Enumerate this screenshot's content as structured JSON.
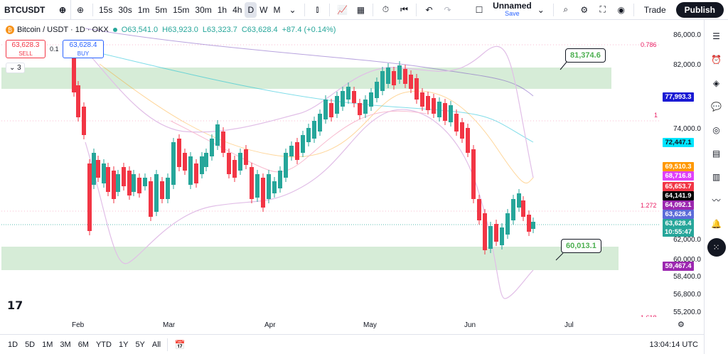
{
  "topbar": {
    "symbol": "BTCUSDT",
    "intervals": [
      "15s",
      "30s",
      "1m",
      "5m",
      "15m",
      "30m",
      "1h",
      "4h",
      "D",
      "W",
      "M"
    ],
    "active_interval": "D",
    "layout_name": "Unnamed",
    "layout_status": "Save",
    "trade_label": "Trade",
    "publish_label": "Publish"
  },
  "legend": {
    "title": "Bitcoin / USDT · 1D · OKX",
    "o": "O63,541.0",
    "h": "H63,923.0",
    "l": "L63,323.7",
    "c": "C63,628.4",
    "change": "+87.4 (+0.14%)",
    "sell_price": "63,628.3",
    "sell_label": "SELL",
    "spread": "0.1",
    "buy_price": "63,628.4",
    "buy_label": "BUY",
    "indicators_count": "3"
  },
  "annotations": {
    "upper_callout": "81,374.6",
    "lower_callout": "60,013.1"
  },
  "fib_labels": [
    "0.786",
    "1",
    "1.272",
    "1.618"
  ],
  "price_axis": [
    "86,000.0",
    "82,000.0",
    "74,000.0",
    "62,000.0",
    "60,000.0",
    "58,400.0",
    "56,800.0",
    "55,200.0"
  ],
  "price_tags": [
    {
      "label": "77,993.3",
      "color": "#1a1ad4",
      "text": "#ffffff"
    },
    {
      "label": "72,447.1",
      "color": "#00e5ff",
      "text": "#131722"
    },
    {
      "label": "69,510.3",
      "color": "#ff9800",
      "text": "#ffffff"
    },
    {
      "label": "68,716.8",
      "color": "#e040fb",
      "text": "#ffffff"
    },
    {
      "label": "65,653.7",
      "color": "#f23645",
      "text": "#ffffff"
    },
    {
      "label": "64,141.9",
      "color": "#000000",
      "text": "#ffffff"
    },
    {
      "label": "64,092.1",
      "color": "#9c27b0",
      "text": "#ffffff"
    },
    {
      "label": "63,628.4",
      "color": "#5b6bd9",
      "text": "#ffffff"
    },
    {
      "label": "63,628.4",
      "color": "#26a69a",
      "text": "#ffffff"
    },
    {
      "label": "10:55:47",
      "color": "#26a69a",
      "text": "#ffffff"
    },
    {
      "label": "59,467.4",
      "color": "#9c27b0",
      "text": "#ffffff"
    }
  ],
  "time_axis": [
    "Feb",
    "Mar",
    "Apr",
    "May",
    "Jun",
    "Jul"
  ],
  "ranges": [
    "1D",
    "5D",
    "1M",
    "3M",
    "6M",
    "YTD",
    "1Y",
    "5Y",
    "All"
  ],
  "clock": "13:04:14 UTC",
  "colors": {
    "up": "#26a69a",
    "down": "#f23645",
    "zone": "#c8e6c9"
  },
  "icons": {
    "right": [
      "watchlist-icon",
      "alerts-icon",
      "layers-icon",
      "chat-icon",
      "target-icon",
      "calendar-icon",
      "news-icon",
      "broadcast-icon",
      "bell-icon",
      "grid-icon"
    ]
  }
}
